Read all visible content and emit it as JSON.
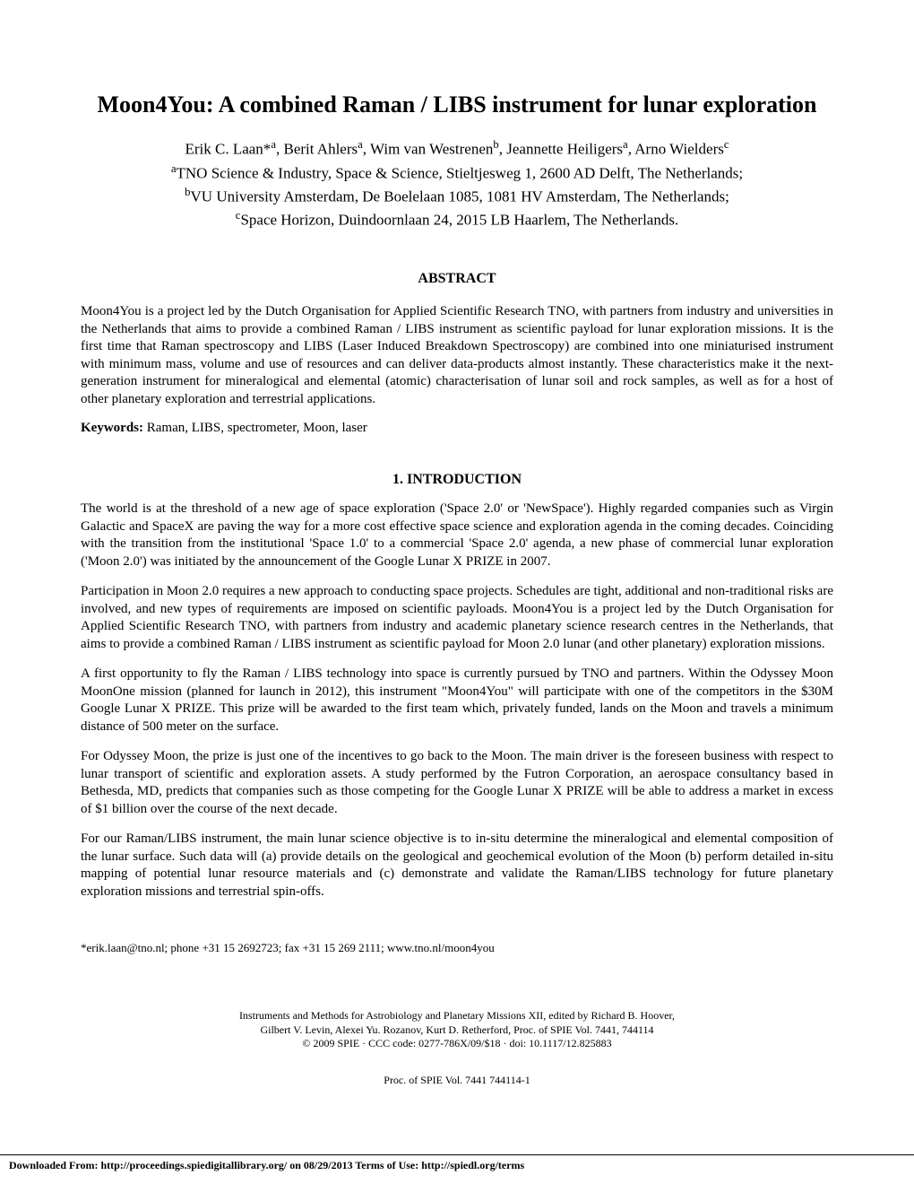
{
  "title": "Moon4You: A combined Raman / LIBS instrument for lunar exploration",
  "authors_html": "Erik C. Laan*<sup>a</sup>, Berit Ahlers<sup>a</sup>, Wim van Westrenen<sup>b</sup>, Jeannette Heiligers<sup>a</sup>, Arno Wielders<sup>c</sup>",
  "affiliations": {
    "a": "TNO Science & Industry, Space & Science, Stieltjesweg 1, 2600 AD Delft, The Netherlands;",
    "b": "VU University Amsterdam, De Boelelaan 1085, 1081 HV Amsterdam, The Netherlands;",
    "c": "Space Horizon, Duindoornlaan 24, 2015 LB Haarlem, The Netherlands."
  },
  "abstract": {
    "heading": "ABSTRACT",
    "text": "Moon4You is a project led by the Dutch Organisation for Applied Scientific Research TNO, with partners from industry and universities in the Netherlands that aims to provide a combined Raman / LIBS instrument as scientific payload for lunar exploration missions. It is the first time that Raman spectroscopy and LIBS (Laser Induced Breakdown Spectroscopy) are combined into one miniaturised instrument with minimum mass, volume and use of resources and can deliver data-products almost instantly. These characteristics make it the next-generation instrument for mineralogical and elemental (atomic) characterisation of lunar soil and rock samples, as well as for a host of other planetary exploration and terrestrial applications."
  },
  "keywords": {
    "label": "Keywords:",
    "text": " Raman, LIBS, spectrometer, Moon, laser"
  },
  "section1": {
    "heading": "1.   INTRODUCTION",
    "paragraphs": [
      "The world is at the threshold of a new age of space exploration ('Space 2.0' or 'NewSpace'). Highly regarded companies such as Virgin Galactic and SpaceX are paving the way for a more cost effective space science and exploration agenda in the coming decades. Coinciding with the transition from the institutional 'Space 1.0' to a commercial 'Space 2.0' agenda, a new phase of commercial lunar exploration ('Moon 2.0') was initiated by the announcement of the Google Lunar X PRIZE in 2007.",
      "Participation in Moon 2.0 requires a new approach to conducting space projects. Schedules are tight, additional and non-traditional risks are involved, and new types of requirements are imposed on scientific payloads. Moon4You is a project led by the Dutch Organisation for Applied Scientific Research TNO, with partners from industry and academic planetary science research centres in the Netherlands, that aims to provide a combined Raman / LIBS instrument as scientific payload for Moon 2.0 lunar (and other planetary) exploration missions.",
      "A first opportunity to fly the Raman / LIBS technology into space is currently pursued by TNO and partners. Within the Odyssey Moon MoonOne mission (planned for launch in 2012), this instrument \"Moon4You\" will participate with one of the competitors in the $30M Google Lunar X PRIZE. This prize will be awarded to the first team which, privately funded, lands on the Moon and travels a minimum distance of 500 meter on the surface.",
      "For Odyssey Moon, the prize is just one of the incentives to go back to the Moon. The main driver is the foreseen business with respect to lunar transport of scientific and exploration assets. A study performed by the Futron Corporation, an aerospace consultancy based in Bethesda, MD, predicts that companies such as those competing for the Google Lunar X PRIZE will be able to address a market in excess of $1 billion over the course of the next decade.",
      "For our Raman/LIBS instrument, the main lunar science objective is to in-situ determine the mineralogical and elemental composition of the lunar surface. Such data will (a) provide details on the geological and geochemical evolution of the Moon (b) perform detailed in-situ mapping of potential lunar resource materials and (c) demonstrate and validate the Raman/LIBS technology for future planetary exploration missions and terrestrial spin-offs."
    ]
  },
  "footnote": "*erik.laan@tno.nl; phone +31 15 2692723; fax +31 15 269 2111; www.tno.nl/moon4you",
  "citation": {
    "line1": "Instruments and Methods for Astrobiology and Planetary Missions XII, edited by Richard B. Hoover,",
    "line2": "Gilbert V. Levin, Alexei Yu. Rozanov, Kurt D. Retherford, Proc. of SPIE Vol. 7441, 744114",
    "line3": "© 2009 SPIE · CCC code: 0277-786X/09/$18 · doi: 10.1117/12.825883"
  },
  "proc_line": "Proc. of SPIE Vol. 7441  744114-1",
  "footer": "Downloaded From: http://proceedings.spiedigitallibrary.org/ on 08/29/2013 Terms of Use: http://spiedl.org/terms"
}
